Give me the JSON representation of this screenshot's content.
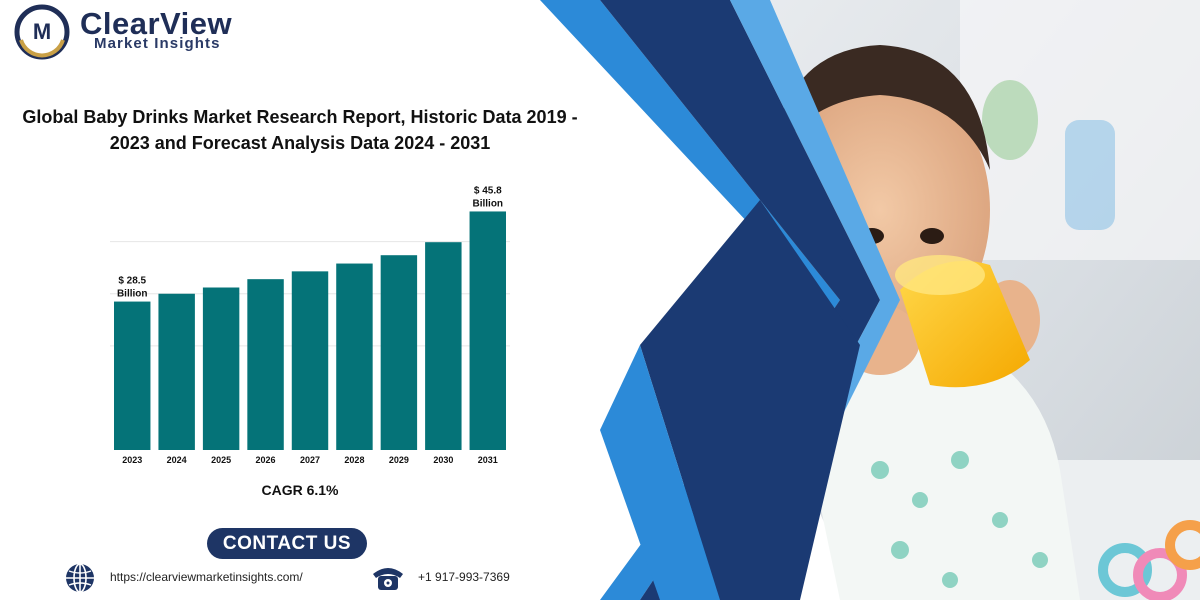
{
  "brand": {
    "name": "ClearView",
    "tagline": "Market Insights",
    "logo_letter": "M"
  },
  "report_title": "Global Baby Drinks Market Research Report, Historic Data 2019 - 2023 and Forecast Analysis Data 2024 - 2031",
  "cagr_text": "CAGR 6.1%",
  "contact_button": "CONTACT US",
  "contact": {
    "website": "https://clearviewmarketinsights.com/",
    "phone": "+1 917-993-7369"
  },
  "colors": {
    "bar": "#057378",
    "navy": "#1b3a73",
    "bright_blue": "#2c8ad8",
    "light_blue": "#5aa9e6",
    "logo_navy": "#1f2e57",
    "logo_gold": "#c9a046"
  },
  "icons": [
    "globe-icon",
    "phone-icon"
  ],
  "chart_data": {
    "type": "bar",
    "categories": [
      "2023",
      "2024",
      "2025",
      "2026",
      "2027",
      "2028",
      "2029",
      "2030",
      "2031"
    ],
    "values": [
      28.5,
      30.0,
      31.2,
      32.8,
      34.3,
      35.8,
      37.4,
      39.9,
      45.8
    ],
    "data_labels": [
      {
        "category": "2023",
        "line1": "$ 28.5",
        "line2": "Billion"
      },
      {
        "category": "2031",
        "line1": "$ 45.8",
        "line2": "Billion"
      }
    ],
    "title": "",
    "xlabel": "",
    "ylabel": "",
    "ylim": [
      0,
      48
    ],
    "grid": true
  }
}
